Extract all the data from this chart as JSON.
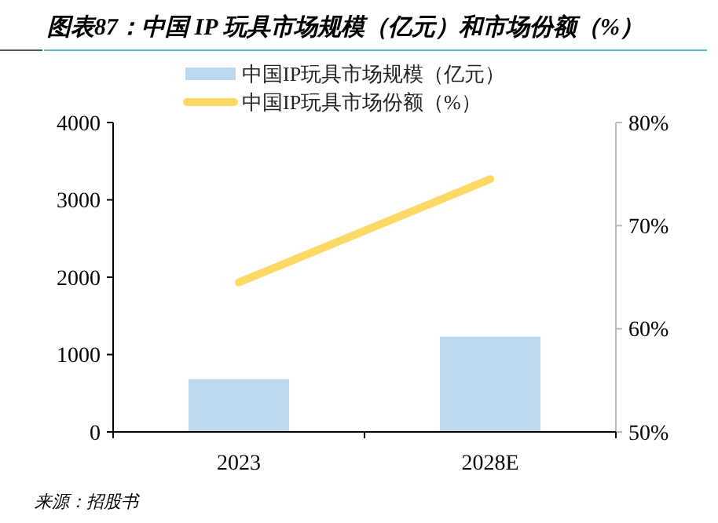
{
  "chart_data": {
    "type": "bar",
    "title": "图表87：中国 IP 玩具市场规模（亿元）和市场份额（%）",
    "categories": [
      "2023",
      "2028E"
    ],
    "series": [
      {
        "name": "中国IP玩具市场规模（亿元）",
        "color": "#bdd7ee",
        "values": [
          680,
          1230
        ]
      },
      {
        "name": "中国IP玩具市场份额（%）",
        "type": "line",
        "axis": "y2",
        "color": "#ffd966",
        "values": [
          64.5,
          74.5
        ]
      }
    ],
    "ylim": [
      0,
      4000
    ],
    "yticks": [
      0,
      1000,
      2000,
      3000,
      4000
    ],
    "y2lim": [
      50,
      80
    ],
    "y2ticks": [
      {
        "value": 50,
        "label": "50%"
      },
      {
        "value": 60,
        "label": "60%"
      },
      {
        "value": 70,
        "label": "70%"
      },
      {
        "value": 80,
        "label": "80%"
      }
    ],
    "legend": "top",
    "grid": false,
    "annotations": [
      "来源：招股书"
    ]
  }
}
